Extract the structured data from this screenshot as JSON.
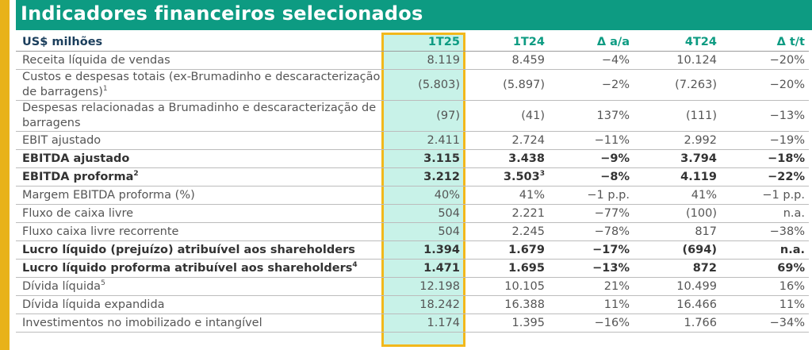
{
  "title": "Indicadores financeiros selecionados",
  "header": {
    "unit_label": "US$ milhões",
    "columns": [
      "1T25",
      "1T24",
      "Δ a/a",
      "4T24",
      "Δ t/t"
    ]
  },
  "rows": [
    {
      "label": "Receita líquida de vendas",
      "note": "",
      "bold": false,
      "values": [
        "8.119",
        "8.459",
        "−4%",
        "10.124",
        "−20%"
      ],
      "notes": [
        "",
        "",
        "",
        "",
        ""
      ]
    },
    {
      "label": "Custos e despesas totais (ex-Brumadinho e descaracterização de barragens)",
      "note": "1",
      "bold": false,
      "values": [
        "(5.803)",
        "(5.897)",
        "−2%",
        "(7.263)",
        "−20%"
      ],
      "notes": [
        "",
        "",
        "",
        "",
        ""
      ]
    },
    {
      "label": "Despesas relacionadas a Brumadinho e descaracterização de barragens",
      "note": "",
      "bold": false,
      "values": [
        "(97)",
        "(41)",
        "137%",
        "(111)",
        "−13%"
      ],
      "notes": [
        "",
        "",
        "",
        "",
        ""
      ]
    },
    {
      "label": "EBIT ajustado",
      "note": "",
      "bold": false,
      "values": [
        "2.411",
        "2.724",
        "−11%",
        "2.992",
        "−19%"
      ],
      "notes": [
        "",
        "",
        "",
        "",
        ""
      ]
    },
    {
      "label": "EBITDA ajustado",
      "note": "",
      "bold": true,
      "values": [
        "3.115",
        "3.438",
        "−9%",
        "3.794",
        "−18%"
      ],
      "notes": [
        "",
        "",
        "",
        "",
        ""
      ]
    },
    {
      "label": "EBITDA proforma",
      "note": "2",
      "bold": true,
      "values": [
        "3.212",
        "3.503",
        "−8%",
        "4.119",
        "−22%"
      ],
      "notes": [
        "",
        "3",
        "",
        "",
        ""
      ]
    },
    {
      "label": "Margem EBITDA proforma (%)",
      "note": "",
      "bold": false,
      "values": [
        "40%",
        "41%",
        "−1 p.p.",
        "41%",
        "−1 p.p."
      ],
      "notes": [
        "",
        "",
        "",
        "",
        ""
      ]
    },
    {
      "label": "Fluxo de caixa livre",
      "note": "",
      "bold": false,
      "values": [
        "504",
        "2.221",
        "−77%",
        "(100)",
        "n.a."
      ],
      "notes": [
        "",
        "",
        "",
        "",
        ""
      ]
    },
    {
      "label": "Fluxo caixa livre recorrente",
      "note": "",
      "bold": false,
      "values": [
        "504",
        "2.245",
        "−78%",
        "817",
        "−38%"
      ],
      "notes": [
        "",
        "",
        "",
        "",
        ""
      ]
    },
    {
      "label": "Lucro líquido (prejuízo) atribuível aos shareholders",
      "note": "",
      "bold": true,
      "values": [
        "1.394",
        "1.679",
        "−17%",
        "(694)",
        "n.a."
      ],
      "notes": [
        "",
        "",
        "",
        "",
        ""
      ]
    },
    {
      "label": "Lucro líquido proforma atribuível aos shareholders",
      "note": "4",
      "bold": true,
      "values": [
        "1.471",
        "1.695",
        "−13%",
        "872",
        "69%"
      ],
      "notes": [
        "",
        "",
        "",
        "",
        ""
      ]
    },
    {
      "label": "Dívida líquida",
      "note": "5",
      "bold": false,
      "values": [
        "12.198",
        "10.105",
        "21%",
        "10.499",
        "16%"
      ],
      "notes": [
        "",
        "",
        "",
        "",
        ""
      ]
    },
    {
      "label": "Dívida líquida expandida",
      "note": "",
      "bold": false,
      "values": [
        "18.242",
        "16.388",
        "11%",
        "16.466",
        "11%"
      ],
      "notes": [
        "",
        "",
        "",
        "",
        ""
      ]
    },
    {
      "label": "Investimentos no imobilizado e intangível",
      "note": "",
      "bold": false,
      "values": [
        "1.174",
        "1.395",
        "−16%",
        "1.766",
        "−34%"
      ],
      "notes": [
        "",
        "",
        "",
        "",
        ""
      ]
    }
  ],
  "colors": {
    "accent": "#0d9b82",
    "highlight_fill": "#c8f2e8",
    "highlight_border": "#f2b81c",
    "side_bar": "#e8b21a",
    "header_label": "#1b3e5c"
  }
}
